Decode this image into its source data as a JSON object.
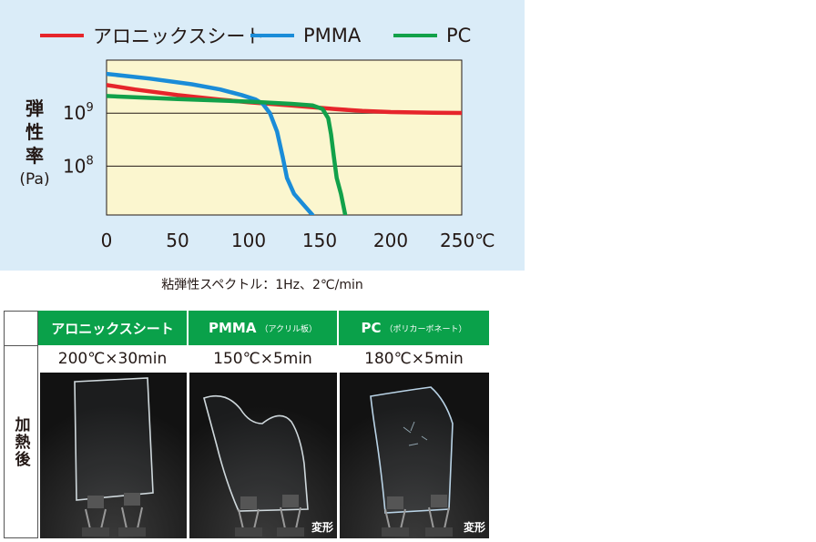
{
  "chart_data": {
    "type": "line",
    "legend_position": "top",
    "series": [
      {
        "name": "アロニックスシート",
        "color": "#e6252b",
        "points": [
          [
            0,
            3400000000.0
          ],
          [
            20,
            2800000000.0
          ],
          [
            50,
            2200000000.0
          ],
          [
            80,
            1800000000.0
          ],
          [
            100,
            1600000000.0
          ],
          [
            130,
            1400000000.0
          ],
          [
            160,
            1200000000.0
          ],
          [
            180,
            1100000000.0
          ],
          [
            200,
            1050000000.0
          ],
          [
            230,
            1020000000.0
          ],
          [
            250,
            1010000000.0
          ]
        ]
      },
      {
        "name": "PMMA",
        "color": "#1a8cd8",
        "points": [
          [
            0,
            5500000000.0
          ],
          [
            30,
            4500000000.0
          ],
          [
            60,
            3500000000.0
          ],
          [
            80,
            2800000000.0
          ],
          [
            95,
            2200000000.0
          ],
          [
            105,
            1800000000.0
          ],
          [
            110,
            1500000000.0
          ],
          [
            115,
            1000000000.0
          ],
          [
            120,
            450000000.0
          ],
          [
            124,
            150000000.0
          ],
          [
            127,
            60000000.0
          ],
          [
            132,
            30000000.0
          ],
          [
            140,
            17000000.0
          ],
          [
            145,
            12000000.0
          ]
        ]
      },
      {
        "name": "PC",
        "color": "#12a14a",
        "points": [
          [
            0,
            2100000000.0
          ],
          [
            50,
            1850000000.0
          ],
          [
            100,
            1650000000.0
          ],
          [
            130,
            1500000000.0
          ],
          [
            145,
            1400000000.0
          ],
          [
            152,
            1200000000.0
          ],
          [
            156,
            800000000.0
          ],
          [
            158,
            400000000.0
          ],
          [
            160,
            150000000.0
          ],
          [
            162,
            60000000.0
          ],
          [
            165,
            30000000.0
          ],
          [
            168,
            12000000.0
          ]
        ]
      }
    ],
    "x_ticks": [
      "0",
      "50",
      "100",
      "150",
      "200",
      "250℃"
    ],
    "x_tick_values": [
      0,
      50,
      100,
      150,
      200,
      250
    ],
    "y_ticks": [
      {
        "base": "10",
        "exp": "9",
        "value": 1000000000.0
      },
      {
        "base": "10",
        "exp": "8",
        "value": 100000000.0
      }
    ],
    "xlim": [
      0,
      250
    ],
    "ylim": [
      12000000.0,
      10000000000.0
    ],
    "y_scale": "log",
    "ylabel_lines": [
      "弾",
      "性",
      "率"
    ],
    "ylabel_unit": "(Pa)",
    "grid": "horizontal at 10^9 and 10^8",
    "plot_background": "#fbf6cf",
    "panel_background": "#daecf8"
  },
  "caption": "粘弾性スペクトル：1Hz、2℃/min",
  "table": {
    "row_header": "加熱後",
    "columns": [
      {
        "name": "アロニックスシート",
        "sub": "",
        "condition": "200℃×30min",
        "tag": ""
      },
      {
        "name": "PMMA",
        "sub": "（アクリル板）",
        "condition": "150℃×5min",
        "tag": "変形"
      },
      {
        "name": "PC",
        "sub": "（ポリカーボネート）",
        "condition": "180℃×5min",
        "tag": "変形"
      }
    ],
    "header_color": "#0aa14a"
  }
}
